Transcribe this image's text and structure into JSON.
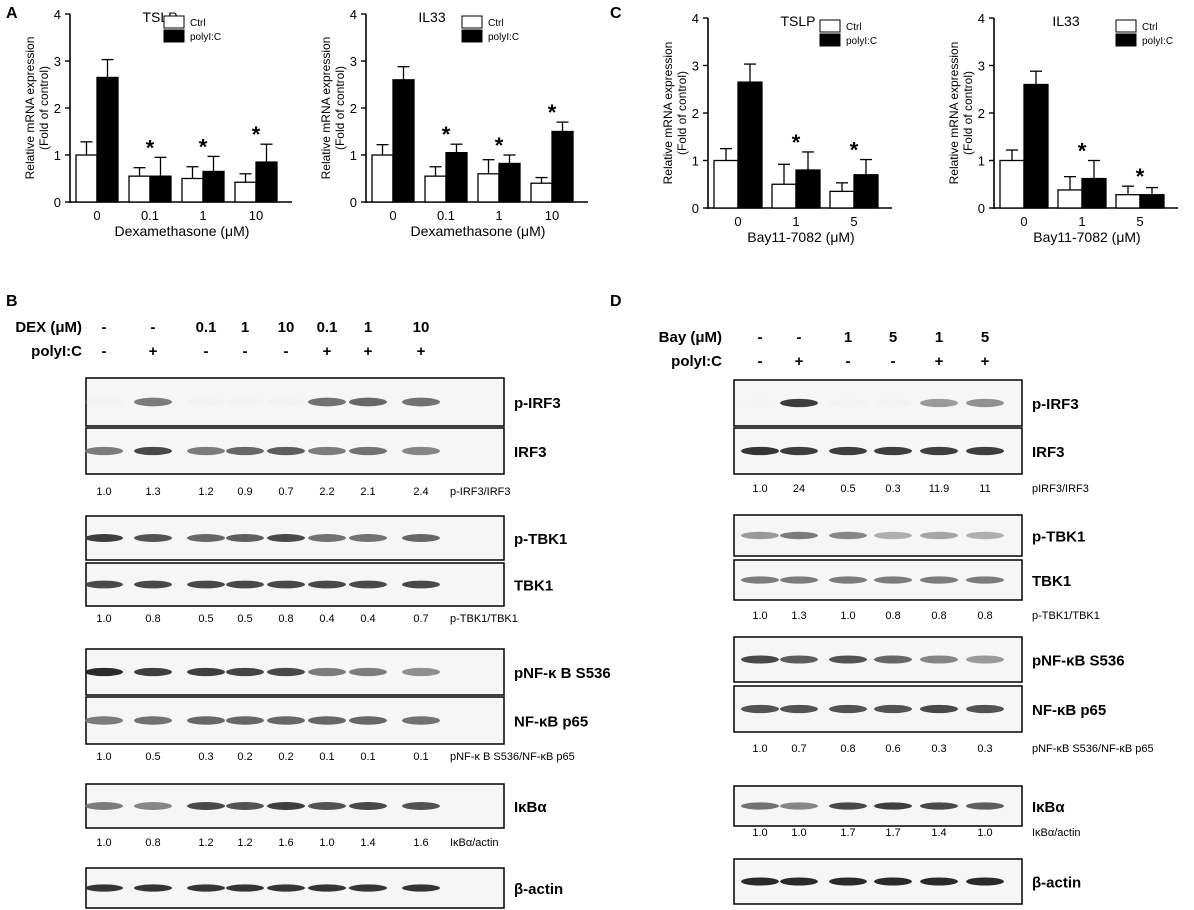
{
  "panels": [
    {
      "letter": "A",
      "x": 6,
      "y": 18
    },
    {
      "letter": "C",
      "x": 610,
      "y": 18
    },
    {
      "letter": "B",
      "x": 6,
      "y": 306
    },
    {
      "letter": "D",
      "x": 610,
      "y": 306
    }
  ],
  "chart_data": [
    {
      "type": "bar",
      "title": "TSLP",
      "ylabel": "Relative mRNA expression",
      "ylabel2": "(Fold of control)",
      "xlabel": "Dexamethasone (μM)",
      "categories": [
        "0",
        "0.1",
        "1",
        "10"
      ],
      "ylim": [
        0,
        4
      ],
      "yticks": [
        0,
        1,
        2,
        3,
        4
      ],
      "legend": [
        "Ctrl",
        "polyI:C"
      ],
      "series": [
        {
          "name": "Ctrl",
          "values": [
            1.0,
            0.55,
            0.5,
            0.42
          ],
          "errors": [
            0.28,
            0.18,
            0.25,
            0.18
          ]
        },
        {
          "name": "polyI:C",
          "values": [
            2.65,
            0.55,
            0.65,
            0.85
          ],
          "errors": [
            0.38,
            0.4,
            0.32,
            0.38
          ]
        }
      ],
      "significance": [
        "",
        "*",
        "*",
        "*"
      ]
    },
    {
      "type": "bar",
      "title": "IL33",
      "ylabel": "Relative mRNA expression",
      "ylabel2": "(Fold of control)",
      "xlabel": "Dexamethasone (μM)",
      "categories": [
        "0",
        "0.1",
        "1",
        "10"
      ],
      "ylim": [
        0,
        4
      ],
      "yticks": [
        0,
        1,
        2,
        3,
        4
      ],
      "legend": [
        "Ctrl",
        "polyI:C"
      ],
      "series": [
        {
          "name": "Ctrl",
          "values": [
            1.0,
            0.55,
            0.6,
            0.4
          ],
          "errors": [
            0.22,
            0.2,
            0.3,
            0.12
          ]
        },
        {
          "name": "polyI:C",
          "values": [
            2.6,
            1.05,
            0.82,
            1.5
          ],
          "errors": [
            0.28,
            0.18,
            0.18,
            0.2
          ]
        }
      ],
      "significance": [
        "",
        "*",
        "*",
        "*"
      ]
    },
    {
      "type": "bar",
      "title": "TSLP",
      "ylabel": "Relative mRNA expression",
      "ylabel2": "(Fold of control)",
      "xlabel": "Bay11-7082 (μM)",
      "categories": [
        "0",
        "1",
        "5"
      ],
      "ylim": [
        0,
        4
      ],
      "yticks": [
        0,
        1,
        2,
        3,
        4
      ],
      "legend": [
        "Ctrl",
        "polyI:C"
      ],
      "series": [
        {
          "name": "Ctrl",
          "values": [
            1.0,
            0.5,
            0.35
          ],
          "errors": [
            0.25,
            0.42,
            0.18
          ]
        },
        {
          "name": "polyI:C",
          "values": [
            2.65,
            0.8,
            0.7
          ],
          "errors": [
            0.38,
            0.38,
            0.32
          ]
        }
      ],
      "significance": [
        "",
        "*",
        "*"
      ]
    },
    {
      "type": "bar",
      "title": "IL33",
      "ylabel": "Relative mRNA expression",
      "ylabel2": "(Fold of control)",
      "xlabel": "Bay11-7082 (μM)",
      "categories": [
        "0",
        "1",
        "5"
      ],
      "ylim": [
        0,
        4
      ],
      "yticks": [
        0,
        1,
        2,
        3,
        4
      ],
      "legend": [
        "Ctrl",
        "polyI:C"
      ],
      "series": [
        {
          "name": "Ctrl",
          "values": [
            1.0,
            0.38,
            0.28
          ],
          "errors": [
            0.22,
            0.28,
            0.18
          ]
        },
        {
          "name": "polyI:C",
          "values": [
            2.6,
            0.62,
            0.28
          ],
          "errors": [
            0.28,
            0.38,
            0.15
          ]
        }
      ],
      "significance": [
        "",
        "*",
        "*"
      ]
    }
  ],
  "blots": [
    {
      "condition_rows": [
        {
          "label": "DEX (μM)",
          "values": [
            "-",
            "-",
            "0.1",
            "1",
            "10",
            "0.1",
            "1",
            "10"
          ]
        },
        {
          "label": "polyI:C",
          "values": [
            "-",
            "+",
            "-",
            "-",
            "-",
            "+",
            "+",
            "+"
          ]
        }
      ],
      "boxes": [
        {
          "label": "p-IRF3",
          "intensity": [
            0.02,
            0.55,
            0.02,
            0.02,
            0.03,
            0.6,
            0.65,
            0.6
          ]
        },
        {
          "label": "IRF3",
          "intensity": [
            0.55,
            0.8,
            0.55,
            0.65,
            0.7,
            0.55,
            0.6,
            0.5
          ]
        },
        {
          "quant": [
            "1.0",
            "1.3",
            "1.2",
            "0.9",
            "0.7",
            "2.2",
            "2.1",
            "2.4"
          ],
          "quant_label": "p-IRF3/IRF3"
        },
        {
          "label": "p-TBK1",
          "intensity": [
            0.85,
            0.75,
            0.65,
            0.7,
            0.8,
            0.6,
            0.6,
            0.65
          ]
        },
        {
          "label": "TBK1",
          "intensity": [
            0.8,
            0.8,
            0.8,
            0.8,
            0.8,
            0.8,
            0.8,
            0.8
          ]
        },
        {
          "quant": [
            "1.0",
            "0.8",
            "0.5",
            "0.5",
            "0.8",
            "0.4",
            "0.4",
            "0.7"
          ],
          "quant_label": "p-TBK1/TBK1"
        },
        {
          "label": "pNF-κ B S536",
          "intensity": [
            0.95,
            0.85,
            0.85,
            0.82,
            0.8,
            0.55,
            0.55,
            0.45
          ]
        },
        {
          "label": "NF-κB p65",
          "intensity": [
            0.55,
            0.6,
            0.65,
            0.65,
            0.65,
            0.65,
            0.65,
            0.6
          ]
        },
        {
          "quant": [
            "1.0",
            "0.5",
            "0.3",
            "0.2",
            "0.2",
            "0.1",
            "0.1",
            "0.1"
          ],
          "quant_label": "pNF-κ B S536/NF-κB p65"
        },
        {
          "label": "IκBα",
          "intensity": [
            0.55,
            0.5,
            0.8,
            0.75,
            0.85,
            0.75,
            0.8,
            0.75
          ]
        },
        {
          "quant": [
            "1.0",
            "0.8",
            "1.2",
            "1.2",
            "1.6",
            "1.0",
            "1.4",
            "1.6"
          ],
          "quant_label": "IκBα/actin"
        },
        {
          "label": "β-actin",
          "intensity": [
            0.9,
            0.9,
            0.9,
            0.9,
            0.9,
            0.9,
            0.9,
            0.9
          ]
        }
      ]
    },
    {
      "condition_rows": [
        {
          "label": "Bay (μM)",
          "values": [
            "-",
            "-",
            "1",
            "5",
            "1",
            "5"
          ]
        },
        {
          "label": "polyI:C",
          "values": [
            "-",
            "+",
            "-",
            "-",
            "+",
            "+"
          ]
        }
      ],
      "boxes": [
        {
          "label": "p-IRF3",
          "intensity": [
            0.01,
            0.85,
            0.02,
            0.02,
            0.4,
            0.45
          ]
        },
        {
          "label": "IRF3",
          "intensity": [
            0.9,
            0.85,
            0.85,
            0.85,
            0.85,
            0.85
          ]
        },
        {
          "quant": [
            "1.0",
            "24",
            "0.5",
            "0.3",
            "11.9",
            "11"
          ],
          "quant_label": "pIRF3/IRF3"
        },
        {
          "label": "p-TBK1",
          "intensity": [
            0.4,
            0.55,
            0.5,
            0.3,
            0.35,
            0.3
          ]
        },
        {
          "label": "TBK1",
          "intensity": [
            0.55,
            0.55,
            0.55,
            0.55,
            0.55,
            0.55
          ]
        },
        {
          "quant": [
            "1.0",
            "1.3",
            "1.0",
            "0.8",
            "0.8",
            "0.8"
          ],
          "quant_label": "p-TBK1/TBK1"
        },
        {
          "label": "pNF-κB S536",
          "intensity": [
            0.8,
            0.7,
            0.75,
            0.65,
            0.5,
            0.4
          ]
        },
        {
          "label": "NF-κB p65",
          "intensity": [
            0.75,
            0.75,
            0.75,
            0.75,
            0.8,
            0.75
          ]
        },
        {
          "quant": [
            "1.0",
            "0.7",
            "0.8",
            "0.6",
            "0.3",
            "0.3"
          ],
          "quant_label": "pNF-κB S536/NF-κB p65"
        },
        {
          "label": "IκBα",
          "intensity": [
            0.6,
            0.5,
            0.8,
            0.85,
            0.8,
            0.7
          ]
        },
        {
          "quant": [
            "1.0",
            "1.0",
            "1.7",
            "1.7",
            "1.4",
            "1.0"
          ],
          "quant_label": "IκBα/actin"
        },
        {
          "label": "β-actin",
          "intensity": [
            0.95,
            0.95,
            0.95,
            0.95,
            0.95,
            0.95
          ]
        }
      ]
    }
  ]
}
